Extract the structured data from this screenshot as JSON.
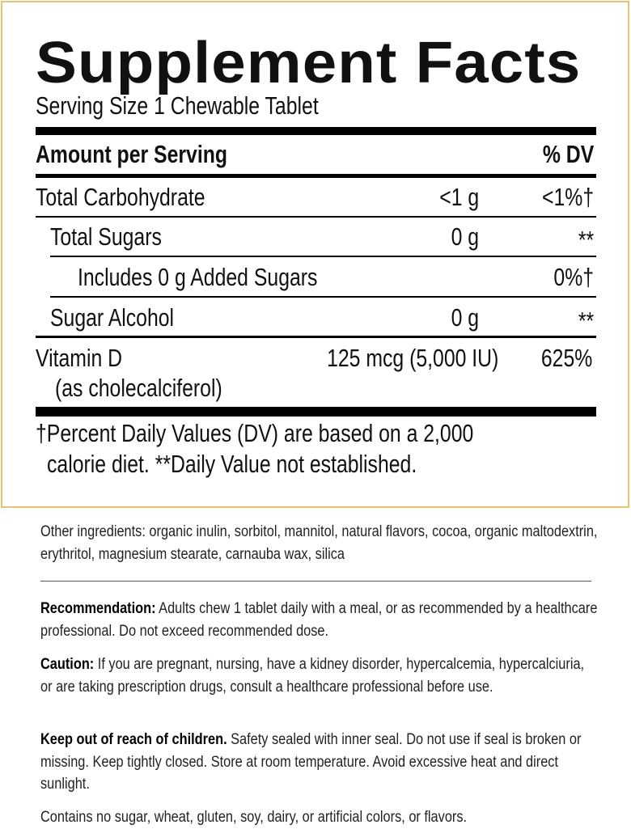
{
  "label": {
    "title": "Supplement Facts",
    "serving_size": "Serving Size 1 Chewable Tablet",
    "header_amount": "Amount per Serving",
    "header_dv": "% DV",
    "rows": [
      {
        "name": "Total Carbohydrate",
        "amount": "<1 g",
        "dv": "<1%†"
      },
      {
        "name": "Total Sugars",
        "amount": "0 g",
        "dv": "**"
      },
      {
        "name": "Includes 0 g Added Sugars",
        "amount": "",
        "dv": "0%†"
      },
      {
        "name": "Sugar Alcohol",
        "amount": "0 g",
        "dv": "**"
      },
      {
        "name": "Vitamin D",
        "sub": "(as cholecalciferol)",
        "amount": "125 mcg (5,000 IU)",
        "dv": "625%"
      }
    ],
    "footnote_1": "†Percent Daily Values (DV) are based on a 2,000",
    "footnote_2": "calorie diet. **Daily Value not established.",
    "border_color": "#e8c373"
  },
  "info": {
    "other_ingredients": "Other ingredients: organic inulin, sorbitol, mannitol, natural flavors, cocoa, organic maltodextrin, erythritol, magnesium stearate, carnauba wax, silica",
    "recommendation_label": "Recommendation:",
    "recommendation_text": " Adults chew 1 tablet daily with a meal, or as recommended by a healthcare professional. Do not exceed recommended dose.",
    "caution_label": "Caution:",
    "caution_text": " If you are pregnant, nursing, have a kidney disorder, hypercalcemia, hypercalciuria, or are taking prescription drugs, consult a healthcare professional before use.",
    "children_label": "Keep out of reach of children.",
    "children_text": " Safety sealed with inner seal. Do not use if seal is broken or missing. Keep tightly closed. Store at room temperature. Avoid excessive heat and direct sunlight.",
    "contains": "Contains no sugar, wheat, gluten, soy, dairy, or artificial colors, or flavors."
  }
}
